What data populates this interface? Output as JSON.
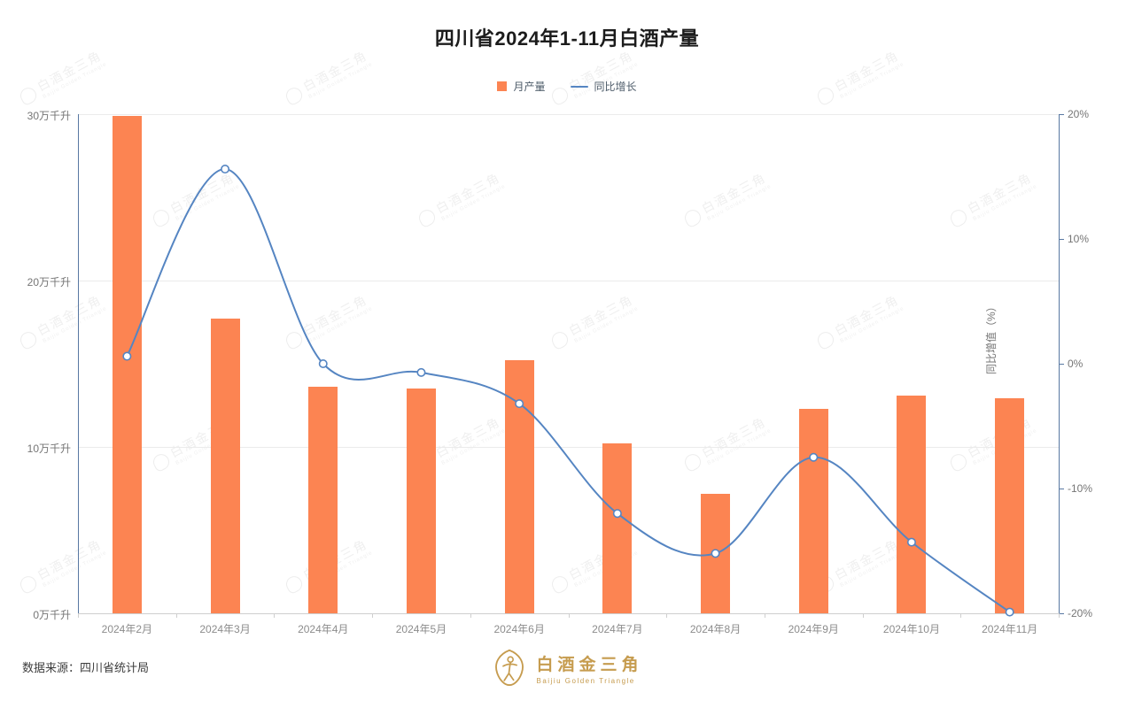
{
  "title": "四川省2024年1-11月白酒产量",
  "legend": [
    {
      "label": "月产量",
      "marker": "orange-square"
    },
    {
      "label": "同比增长",
      "marker": "blue-line"
    }
  ],
  "footer": {
    "source": "数据来源：四川省统计局"
  },
  "logo": {
    "name": "白酒金三角",
    "subtitle": "Baijiu Golden Triangle"
  },
  "watermark": {
    "text": "白酒金三角",
    "subtext": "Baijiu Golden Triangle"
  },
  "colors": {
    "bar": "#fc8452",
    "line": "#5585c2",
    "marker_fill": "#ffffff",
    "axis": "#5878a2",
    "grid": "#ebebeb",
    "gold": "#c69c4f",
    "title_text": "#1c1c1c",
    "tick_text": "#757575"
  },
  "chart_data": {
    "type": "bar+line-combo",
    "title": "四川省2024年1-11月白酒产量",
    "categories": [
      "2024年2月",
      "2024年3月",
      "2024年4月",
      "2024年5月",
      "2024年6月",
      "2024年7月",
      "2024年8月",
      "2024年9月",
      "2024年10月",
      "2024年11月"
    ],
    "series": [
      {
        "name": "月产量",
        "type": "bar",
        "axis": "left",
        "unit": "万千升",
        "values": [
          29.9,
          17.7,
          13.6,
          13.5,
          15.2,
          10.2,
          7.2,
          12.3,
          13.1,
          12.9
        ]
      },
      {
        "name": "同比增长",
        "type": "line",
        "axis": "right",
        "unit": "%",
        "smooth": true,
        "values": [
          0.6,
          15.6,
          0.0,
          -0.7,
          -3.2,
          -12.0,
          -15.2,
          -7.5,
          -14.3,
          -19.9
        ]
      }
    ],
    "y_axis_left": {
      "min": 0,
      "max": 30,
      "ticks": [
        0,
        10,
        20,
        30
      ],
      "tick_labels": [
        "0万千升",
        "10万千升",
        "20万千升",
        "30万千升"
      ]
    },
    "y_axis_right": {
      "min": -20,
      "max": 20,
      "ticks": [
        -20,
        -10,
        0,
        10,
        20
      ],
      "tick_labels": [
        "-20%",
        "-10%",
        "0%",
        "10%",
        "20%"
      ],
      "title": "同比增值（%）"
    },
    "grid": true,
    "legend_position": "top-center"
  }
}
